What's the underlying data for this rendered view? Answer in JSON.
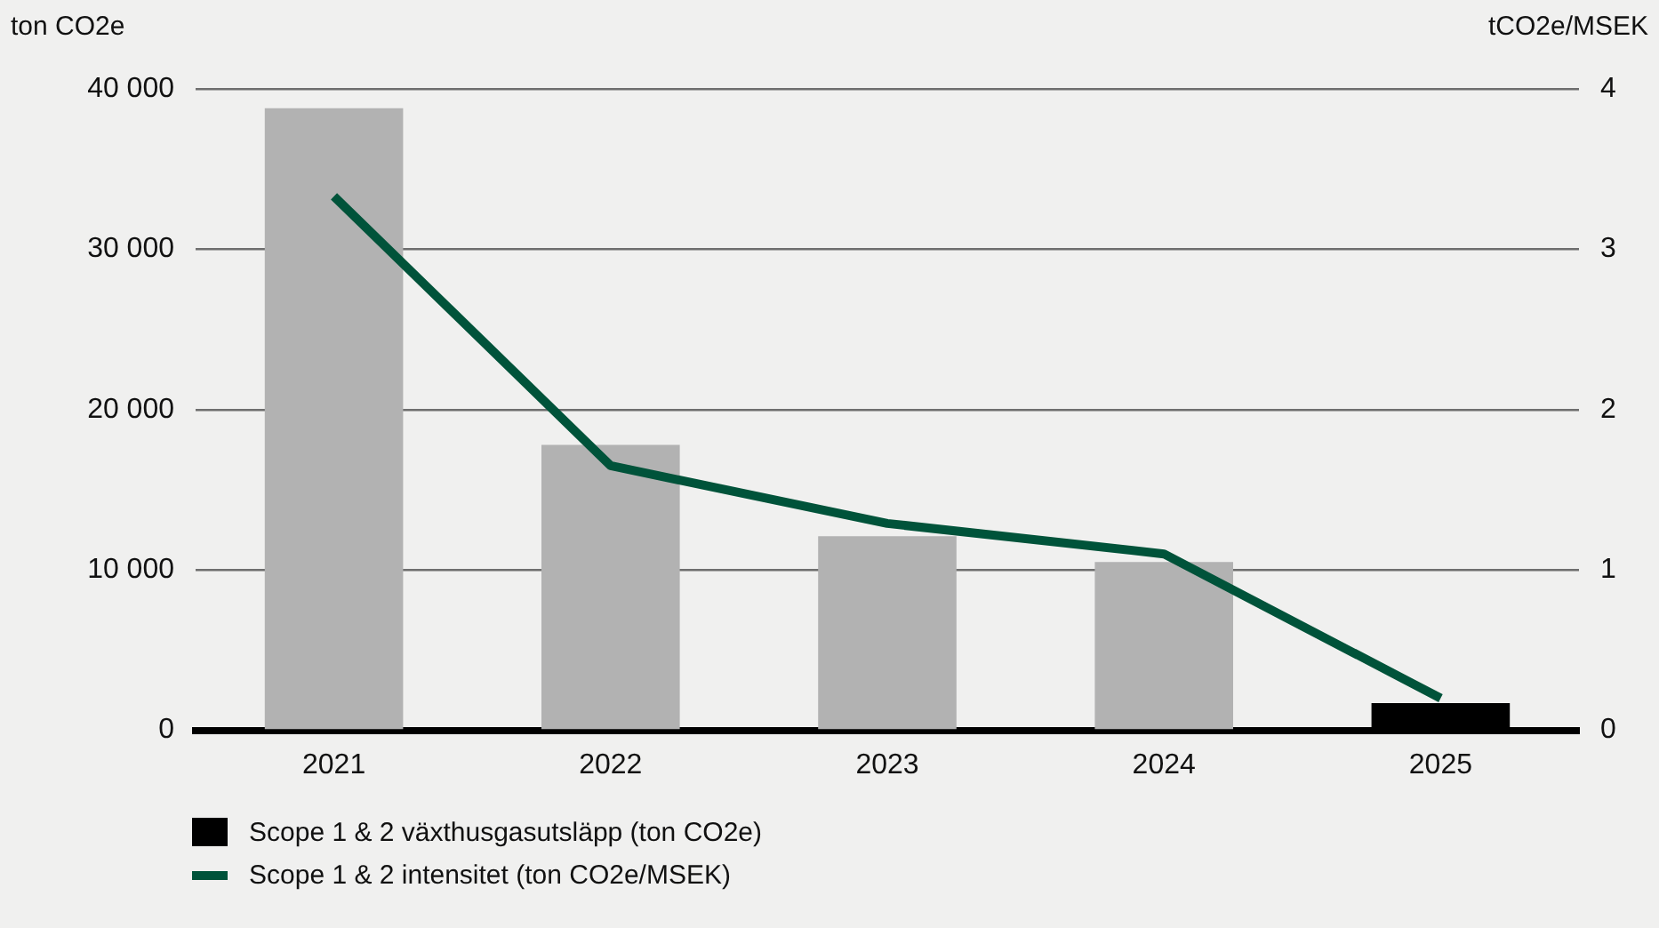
{
  "chart_data": {
    "type": "bar",
    "ylabel": "ton CO2e",
    "y2label": "tCO2e/MSEK",
    "categories": [
      "2021",
      "2022",
      "2023",
      "2024",
      "2025"
    ],
    "series": [
      {
        "name": "Scope 1 & 2 växthusgasutsläpp (ton CO2e)",
        "color": "#000000",
        "colors": [
          "#b2b2b2",
          "#b2b2b2",
          "#b2b2b2",
          "#b2b2b2",
          "#000000"
        ],
        "values": [
          38800,
          17800,
          12100,
          10500,
          1700
        ]
      },
      {
        "name": "Scope 1 & 2 intensitet (ton CO2e/MSEK)",
        "type": "line",
        "axis": "y2",
        "color": "#00533a",
        "values": [
          3.33,
          1.65,
          1.29,
          1.1,
          0.2
        ]
      }
    ],
    "ylim": [
      0,
      40000
    ],
    "yticks": [
      0,
      {
        "value": 10000,
        "label": "10 000"
      },
      {
        "value": 20000,
        "label": "20 000"
      },
      {
        "value": 30000,
        "label": "30 000"
      },
      {
        "value": 40000,
        "label": "40 000"
      }
    ],
    "y2lim": [
      0,
      4
    ],
    "y2ticks": [
      0,
      1,
      2,
      3,
      4
    ],
    "grid": "y",
    "legend": "bottom",
    "marker": "none",
    "line_style": "solid"
  }
}
